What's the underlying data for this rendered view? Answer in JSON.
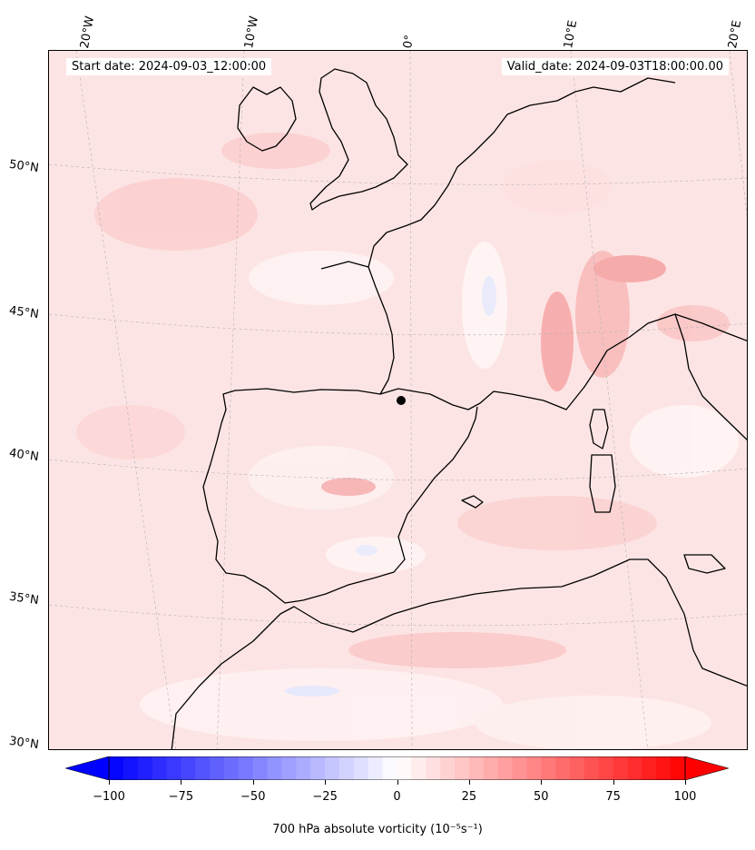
{
  "map": {
    "start_date": "Start date: 2024-09-03_12:00:00",
    "valid_date": "Valid_date: 2024-09-03T18:00:00.00",
    "lat_labels": [
      "50°N",
      "45°N",
      "40°N",
      "35°N",
      "30°N"
    ],
    "lon_labels": [
      "20°W",
      "10°W",
      "0°",
      "10°E",
      "20°E"
    ]
  },
  "colorbar": {
    "title": "700 hPa absolute vorticity (10⁻⁵s⁻¹)",
    "ticks": [
      "−100",
      "−75",
      "−50",
      "−25",
      "0",
      "25",
      "50",
      "75",
      "100"
    ],
    "vmin": -100,
    "vmax": 100,
    "step": 5,
    "colors": {
      "negative": "#0000ff",
      "zero": "#ffffff",
      "positive": "#ff0000"
    }
  }
}
